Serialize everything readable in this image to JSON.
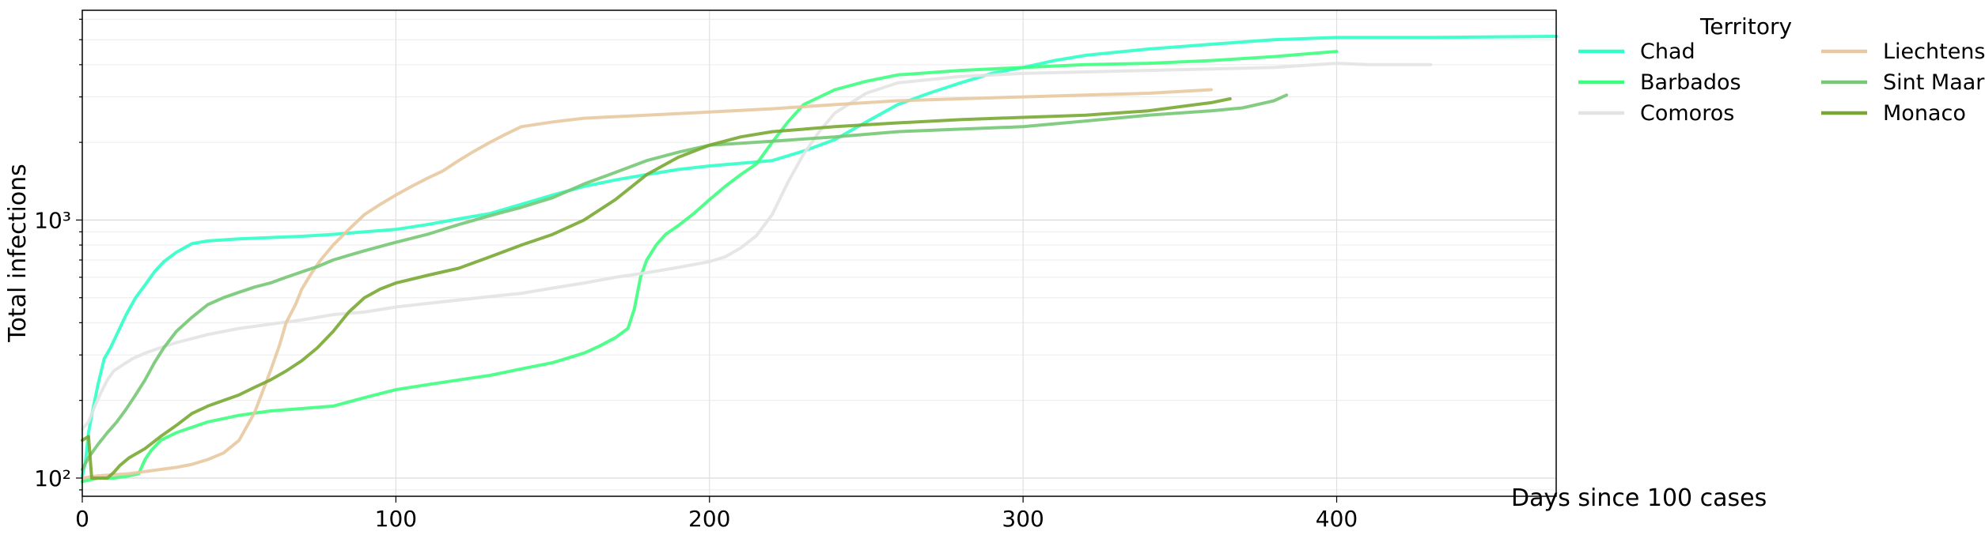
{
  "chart_data": {
    "type": "line",
    "xlabel": "Days since 100 cases",
    "ylabel": "Total infections",
    "xlim": [
      0,
      470
    ],
    "ylim": [
      85,
      6500
    ],
    "yscale": "log",
    "x_ticks": [
      0,
      100,
      200,
      300,
      400
    ],
    "y_ticks": [
      {
        "value": 100,
        "label": "10²"
      },
      {
        "value": 1000,
        "label": "10³"
      }
    ],
    "grid": true,
    "legend": {
      "title": "Territory",
      "placement": "outside-top-right",
      "columns": 2
    },
    "series": [
      {
        "name": "Chad",
        "color": "#2effc8",
        "points": [
          [
            0,
            102
          ],
          [
            1,
            115
          ],
          [
            2,
            150
          ],
          [
            3,
            175
          ],
          [
            5,
            230
          ],
          [
            7,
            290
          ],
          [
            9,
            320
          ],
          [
            11,
            360
          ],
          [
            14,
            430
          ],
          [
            17,
            500
          ],
          [
            20,
            560
          ],
          [
            23,
            630
          ],
          [
            26,
            690
          ],
          [
            30,
            750
          ],
          [
            35,
            810
          ],
          [
            40,
            830
          ],
          [
            50,
            845
          ],
          [
            60,
            855
          ],
          [
            70,
            865
          ],
          [
            80,
            880
          ],
          [
            90,
            900
          ],
          [
            100,
            920
          ],
          [
            110,
            960
          ],
          [
            120,
            1010
          ],
          [
            130,
            1060
          ],
          [
            140,
            1150
          ],
          [
            150,
            1250
          ],
          [
            160,
            1350
          ],
          [
            170,
            1430
          ],
          [
            180,
            1500
          ],
          [
            190,
            1570
          ],
          [
            200,
            1620
          ],
          [
            210,
            1660
          ],
          [
            220,
            1700
          ],
          [
            230,
            1850
          ],
          [
            240,
            2050
          ],
          [
            250,
            2400
          ],
          [
            260,
            2800
          ],
          [
            270,
            3100
          ],
          [
            280,
            3400
          ],
          [
            290,
            3700
          ],
          [
            300,
            3900
          ],
          [
            310,
            4150
          ],
          [
            320,
            4350
          ],
          [
            340,
            4600
          ],
          [
            360,
            4800
          ],
          [
            380,
            5000
          ],
          [
            400,
            5100
          ],
          [
            430,
            5100
          ],
          [
            470,
            5150
          ]
        ]
      },
      {
        "name": "Barbados",
        "color": "#3dff7e",
        "points": [
          [
            0,
            97
          ],
          [
            5,
            100
          ],
          [
            10,
            100
          ],
          [
            15,
            102
          ],
          [
            18,
            104
          ],
          [
            20,
            118
          ],
          [
            22,
            128
          ],
          [
            25,
            140
          ],
          [
            30,
            150
          ],
          [
            40,
            165
          ],
          [
            50,
            175
          ],
          [
            60,
            182
          ],
          [
            70,
            186
          ],
          [
            80,
            190
          ],
          [
            90,
            205
          ],
          [
            100,
            220
          ],
          [
            110,
            230
          ],
          [
            120,
            240
          ],
          [
            130,
            250
          ],
          [
            140,
            265
          ],
          [
            150,
            280
          ],
          [
            160,
            305
          ],
          [
            165,
            325
          ],
          [
            170,
            350
          ],
          [
            174,
            380
          ],
          [
            176,
            450
          ],
          [
            178,
            600
          ],
          [
            180,
            700
          ],
          [
            183,
            800
          ],
          [
            186,
            880
          ],
          [
            190,
            950
          ],
          [
            195,
            1060
          ],
          [
            200,
            1200
          ],
          [
            205,
            1350
          ],
          [
            210,
            1500
          ],
          [
            215,
            1650
          ],
          [
            220,
            2000
          ],
          [
            225,
            2400
          ],
          [
            230,
            2800
          ],
          [
            240,
            3200
          ],
          [
            250,
            3450
          ],
          [
            260,
            3650
          ],
          [
            280,
            3800
          ],
          [
            300,
            3900
          ],
          [
            320,
            4000
          ],
          [
            340,
            4050
          ],
          [
            360,
            4150
          ],
          [
            380,
            4300
          ],
          [
            400,
            4500
          ]
        ]
      },
      {
        "name": "Comoros",
        "color": "#e3e3e3",
        "points": [
          [
            0,
            155
          ],
          [
            2,
            165
          ],
          [
            4,
            190
          ],
          [
            6,
            215
          ],
          [
            8,
            240
          ],
          [
            10,
            260
          ],
          [
            13,
            275
          ],
          [
            16,
            290
          ],
          [
            20,
            305
          ],
          [
            25,
            320
          ],
          [
            30,
            335
          ],
          [
            40,
            360
          ],
          [
            50,
            380
          ],
          [
            60,
            395
          ],
          [
            70,
            410
          ],
          [
            80,
            430
          ],
          [
            90,
            440
          ],
          [
            100,
            460
          ],
          [
            110,
            475
          ],
          [
            120,
            490
          ],
          [
            130,
            505
          ],
          [
            140,
            520
          ],
          [
            150,
            545
          ],
          [
            160,
            570
          ],
          [
            170,
            600
          ],
          [
            180,
            625
          ],
          [
            190,
            655
          ],
          [
            200,
            690
          ],
          [
            205,
            720
          ],
          [
            210,
            780
          ],
          [
            215,
            870
          ],
          [
            220,
            1050
          ],
          [
            225,
            1400
          ],
          [
            230,
            1800
          ],
          [
            235,
            2200
          ],
          [
            240,
            2600
          ],
          [
            250,
            3100
          ],
          [
            260,
            3400
          ],
          [
            280,
            3600
          ],
          [
            300,
            3700
          ],
          [
            320,
            3750
          ],
          [
            340,
            3800
          ],
          [
            360,
            3850
          ],
          [
            380,
            3900
          ],
          [
            400,
            4050
          ],
          [
            410,
            4000
          ],
          [
            430,
            4000
          ]
        ]
      },
      {
        "name": "Liechtenstein",
        "color": "#e8c8a0",
        "points": [
          [
            0,
            100
          ],
          [
            5,
            102
          ],
          [
            10,
            103
          ],
          [
            15,
            104
          ],
          [
            20,
            106
          ],
          [
            25,
            108
          ],
          [
            30,
            110
          ],
          [
            35,
            113
          ],
          [
            40,
            118
          ],
          [
            45,
            125
          ],
          [
            50,
            140
          ],
          [
            55,
            180
          ],
          [
            60,
            260
          ],
          [
            63,
            330
          ],
          [
            65,
            400
          ],
          [
            68,
            470
          ],
          [
            70,
            540
          ],
          [
            73,
            620
          ],
          [
            76,
            700
          ],
          [
            80,
            800
          ],
          [
            85,
            920
          ],
          [
            90,
            1050
          ],
          [
            95,
            1150
          ],
          [
            100,
            1250
          ],
          [
            105,
            1350
          ],
          [
            110,
            1450
          ],
          [
            115,
            1550
          ],
          [
            120,
            1700
          ],
          [
            125,
            1850
          ],
          [
            130,
            2000
          ],
          [
            135,
            2150
          ],
          [
            140,
            2300
          ],
          [
            150,
            2400
          ],
          [
            160,
            2480
          ],
          [
            180,
            2550
          ],
          [
            200,
            2620
          ],
          [
            220,
            2700
          ],
          [
            240,
            2800
          ],
          [
            260,
            2900
          ],
          [
            280,
            2950
          ],
          [
            300,
            3000
          ],
          [
            320,
            3050
          ],
          [
            340,
            3100
          ],
          [
            360,
            3200
          ]
        ]
      },
      {
        "name": "Sint Maarten",
        "color": "#76c876",
        "points": [
          [
            0,
            108
          ],
          [
            2,
            120
          ],
          [
            5,
            135
          ],
          [
            8,
            150
          ],
          [
            11,
            165
          ],
          [
            14,
            185
          ],
          [
            17,
            210
          ],
          [
            20,
            240
          ],
          [
            23,
            280
          ],
          [
            26,
            320
          ],
          [
            30,
            370
          ],
          [
            35,
            420
          ],
          [
            40,
            470
          ],
          [
            45,
            500
          ],
          [
            50,
            525
          ],
          [
            55,
            550
          ],
          [
            60,
            570
          ],
          [
            65,
            600
          ],
          [
            70,
            630
          ],
          [
            75,
            660
          ],
          [
            80,
            700
          ],
          [
            85,
            730
          ],
          [
            90,
            760
          ],
          [
            100,
            820
          ],
          [
            110,
            880
          ],
          [
            120,
            960
          ],
          [
            130,
            1040
          ],
          [
            140,
            1120
          ],
          [
            150,
            1220
          ],
          [
            160,
            1380
          ],
          [
            170,
            1530
          ],
          [
            180,
            1700
          ],
          [
            190,
            1830
          ],
          [
            200,
            1950
          ],
          [
            220,
            2020
          ],
          [
            240,
            2100
          ],
          [
            260,
            2200
          ],
          [
            280,
            2250
          ],
          [
            300,
            2300
          ],
          [
            320,
            2420
          ],
          [
            340,
            2550
          ],
          [
            360,
            2650
          ],
          [
            370,
            2720
          ],
          [
            380,
            2900
          ],
          [
            384,
            3050
          ]
        ]
      },
      {
        "name": "Monaco",
        "color": "#78a832",
        "points": [
          [
            0,
            140
          ],
          [
            2,
            145
          ],
          [
            3,
            100
          ],
          [
            5,
            100
          ],
          [
            8,
            100
          ],
          [
            10,
            105
          ],
          [
            12,
            112
          ],
          [
            15,
            120
          ],
          [
            20,
            130
          ],
          [
            25,
            145
          ],
          [
            30,
            160
          ],
          [
            35,
            178
          ],
          [
            40,
            190
          ],
          [
            45,
            200
          ],
          [
            50,
            210
          ],
          [
            55,
            225
          ],
          [
            60,
            240
          ],
          [
            65,
            260
          ],
          [
            70,
            285
          ],
          [
            75,
            320
          ],
          [
            80,
            370
          ],
          [
            85,
            440
          ],
          [
            90,
            500
          ],
          [
            95,
            540
          ],
          [
            100,
            570
          ],
          [
            110,
            610
          ],
          [
            120,
            650
          ],
          [
            130,
            720
          ],
          [
            140,
            800
          ],
          [
            150,
            880
          ],
          [
            160,
            1000
          ],
          [
            170,
            1200
          ],
          [
            180,
            1500
          ],
          [
            190,
            1750
          ],
          [
            200,
            1950
          ],
          [
            210,
            2100
          ],
          [
            220,
            2200
          ],
          [
            240,
            2300
          ],
          [
            260,
            2380
          ],
          [
            280,
            2450
          ],
          [
            300,
            2500
          ],
          [
            320,
            2550
          ],
          [
            340,
            2650
          ],
          [
            350,
            2750
          ],
          [
            360,
            2850
          ],
          [
            366,
            2950
          ]
        ]
      }
    ]
  }
}
